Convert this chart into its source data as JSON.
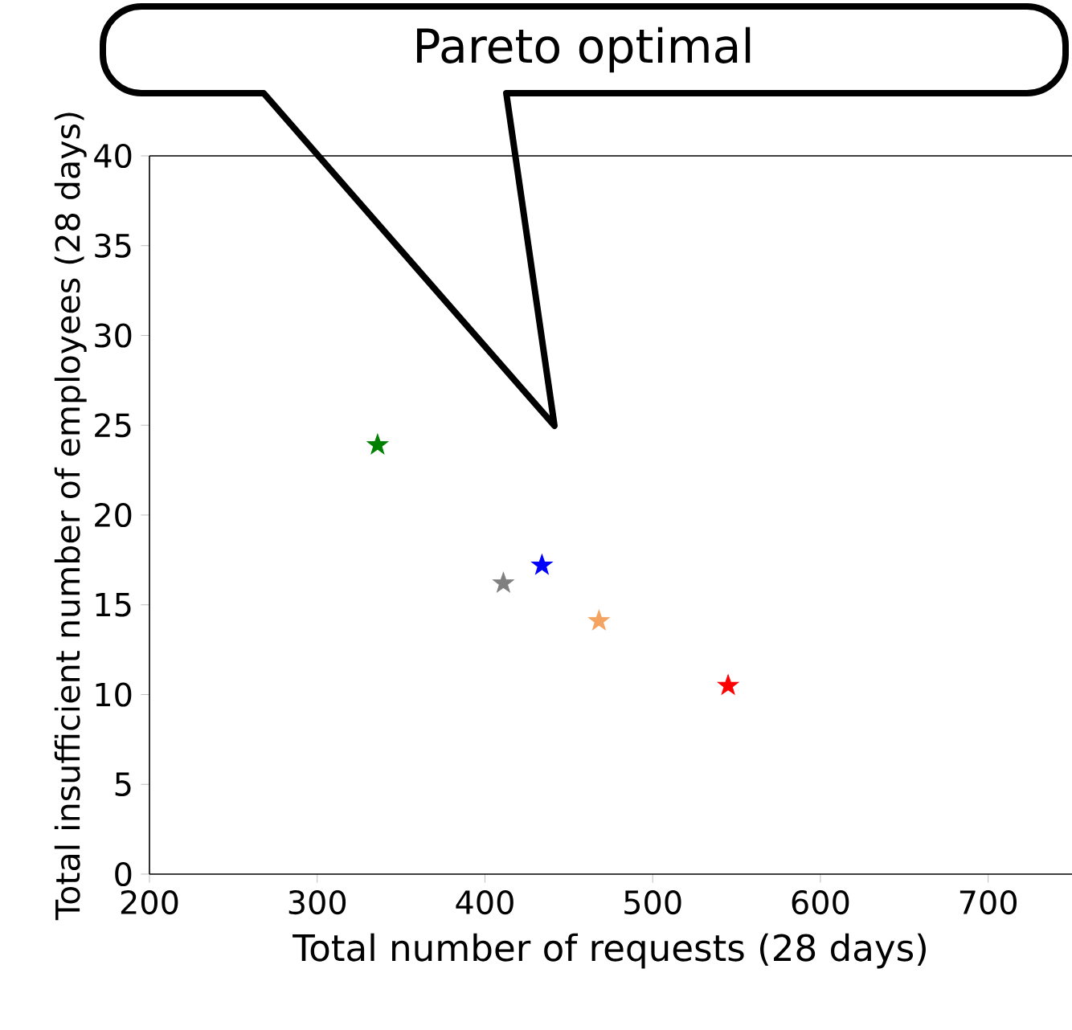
{
  "chart_data": {
    "type": "scatter",
    "xlabel": "Total number of requests  (28 days)",
    "ylabel": "Total insufficient number of employees  (28 days)",
    "annotations": [
      "Pareto optimal"
    ],
    "series": [
      {
        "x": [
          336,
          411,
          434,
          468,
          545
        ],
        "values": [
          23.9,
          16.2,
          17.2,
          14.1,
          10.5
        ],
        "colors": [
          "#008000",
          "#808080",
          "#0000ff",
          "#f4a460",
          "#ff0000"
        ]
      }
    ],
    "marker": "star",
    "xlim": [
      200,
      750
    ],
    "xticks": [
      200,
      300,
      400,
      500,
      600,
      700
    ],
    "ylim": [
      0,
      40
    ],
    "yticks": [
      0,
      5,
      10,
      15,
      20,
      25,
      30,
      35,
      40
    ],
    "grid": false
  }
}
